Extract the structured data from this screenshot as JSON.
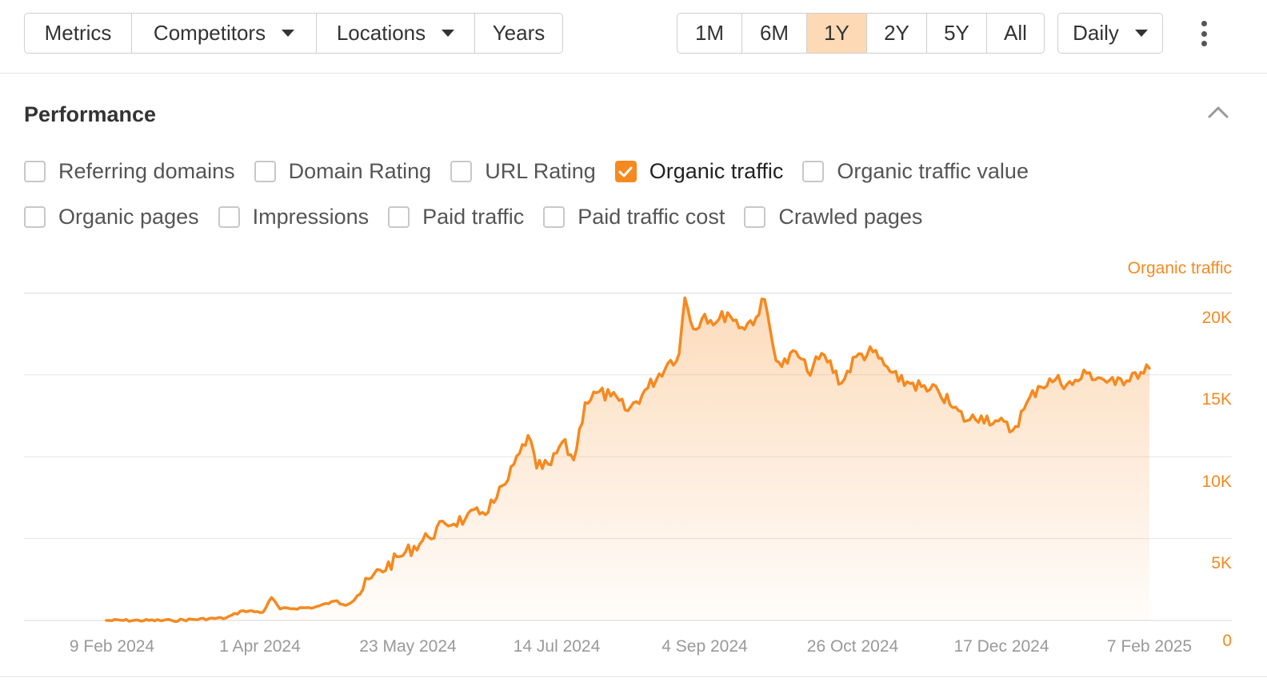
{
  "toolbar": {
    "left_group": [
      {
        "label": "Metrics",
        "active": true,
        "dropdown": false
      },
      {
        "label": "Competitors",
        "active": false,
        "dropdown": true
      },
      {
        "label": "Locations",
        "active": false,
        "dropdown": true
      },
      {
        "label": "Years",
        "active": false,
        "dropdown": false
      }
    ],
    "range_group": [
      {
        "label": "1M",
        "active": false
      },
      {
        "label": "6M",
        "active": false
      },
      {
        "label": "1Y",
        "active": true
      },
      {
        "label": "2Y",
        "active": false
      },
      {
        "label": "5Y",
        "active": false
      },
      {
        "label": "All",
        "active": false
      }
    ],
    "interval": {
      "label": "Daily"
    }
  },
  "section": {
    "title": "Performance"
  },
  "metrics_row1": [
    {
      "label": "Referring domains",
      "checked": false
    },
    {
      "label": "Domain Rating",
      "checked": false
    },
    {
      "label": "URL Rating",
      "checked": false
    },
    {
      "label": "Organic traffic",
      "checked": true
    },
    {
      "label": "Organic traffic value",
      "checked": false
    }
  ],
  "metrics_row2": [
    {
      "label": "Organic pages",
      "checked": false
    },
    {
      "label": "Impressions",
      "checked": false
    },
    {
      "label": "Paid traffic",
      "checked": false
    },
    {
      "label": "Paid traffic cost",
      "checked": false
    },
    {
      "label": "Crawled pages",
      "checked": false
    }
  ],
  "colors": {
    "accent": "#f6891f",
    "active_bg": "#fdd9b5",
    "grid": "#e6e6e6",
    "axis_text": "#999999"
  },
  "chart_data": {
    "type": "area",
    "series": [
      {
        "name": "Organic traffic"
      }
    ],
    "x_ticks": [
      "9 Feb 2024",
      "1 Apr 2024",
      "23 May 2024",
      "14 Jul 2024",
      "4 Sep 2024",
      "26 Oct 2024",
      "17 Dec 2024",
      "7 Feb 2025"
    ],
    "y_ticks": [
      "0",
      "5K",
      "10K",
      "15K",
      "20K"
    ],
    "ylim": [
      0,
      20000
    ],
    "grid": true,
    "points": [
      [
        "2024-02-07",
        0
      ],
      [
        "2024-03-01",
        0
      ],
      [
        "2024-03-20",
        150
      ],
      [
        "2024-03-26",
        600
      ],
      [
        "2024-04-02",
        500
      ],
      [
        "2024-04-05",
        1400
      ],
      [
        "2024-04-08",
        700
      ],
      [
        "2024-04-20",
        800
      ],
      [
        "2024-04-28",
        1200
      ],
      [
        "2024-05-05",
        1500
      ],
      [
        "2024-05-10",
        2600
      ],
      [
        "2024-05-20",
        3900
      ],
      [
        "2024-05-30",
        5100
      ],
      [
        "2024-06-05",
        5900
      ],
      [
        "2024-06-12",
        6200
      ],
      [
        "2024-06-18",
        6600
      ],
      [
        "2024-06-22",
        7200
      ],
      [
        "2024-06-27",
        8600
      ],
      [
        "2024-07-01",
        10200
      ],
      [
        "2024-07-04",
        11300
      ],
      [
        "2024-07-07",
        9300
      ],
      [
        "2024-07-12",
        9500
      ],
      [
        "2024-07-16",
        10900
      ],
      [
        "2024-07-20",
        9800
      ],
      [
        "2024-07-24",
        13300
      ],
      [
        "2024-07-28",
        13900
      ],
      [
        "2024-08-02",
        13700
      ],
      [
        "2024-08-08",
        12800
      ],
      [
        "2024-08-15",
        14200
      ],
      [
        "2024-08-22",
        15700
      ],
      [
        "2024-08-26",
        16300
      ],
      [
        "2024-08-28",
        19700
      ],
      [
        "2024-08-31",
        17800
      ],
      [
        "2024-09-04",
        18700
      ],
      [
        "2024-09-08",
        18200
      ],
      [
        "2024-09-12",
        18800
      ],
      [
        "2024-09-17",
        17900
      ],
      [
        "2024-09-22",
        18500
      ],
      [
        "2024-09-25",
        19600
      ],
      [
        "2024-09-28",
        16700
      ],
      [
        "2024-10-01",
        15500
      ],
      [
        "2024-10-06",
        16400
      ],
      [
        "2024-10-10",
        15200
      ],
      [
        "2024-10-16",
        16200
      ],
      [
        "2024-10-22",
        14500
      ],
      [
        "2024-10-27",
        16100
      ],
      [
        "2024-11-02",
        16400
      ],
      [
        "2024-11-06",
        15600
      ],
      [
        "2024-11-11",
        14600
      ],
      [
        "2024-11-16",
        14500
      ],
      [
        "2024-11-21",
        14000
      ],
      [
        "2024-11-25",
        14000
      ],
      [
        "2024-11-30",
        13000
      ],
      [
        "2024-12-05",
        12200
      ],
      [
        "2024-12-10",
        12500
      ],
      [
        "2024-12-15",
        12200
      ],
      [
        "2024-12-21",
        11600
      ],
      [
        "2024-12-25",
        12900
      ],
      [
        "2024-12-30",
        14300
      ],
      [
        "2025-01-05",
        14700
      ],
      [
        "2025-01-11",
        14400
      ],
      [
        "2025-01-16",
        15100
      ],
      [
        "2025-01-21",
        14800
      ],
      [
        "2025-01-26",
        14400
      ],
      [
        "2025-02-01",
        15100
      ],
      [
        "2025-02-05",
        15100
      ],
      [
        "2025-02-07",
        15400
      ]
    ]
  }
}
